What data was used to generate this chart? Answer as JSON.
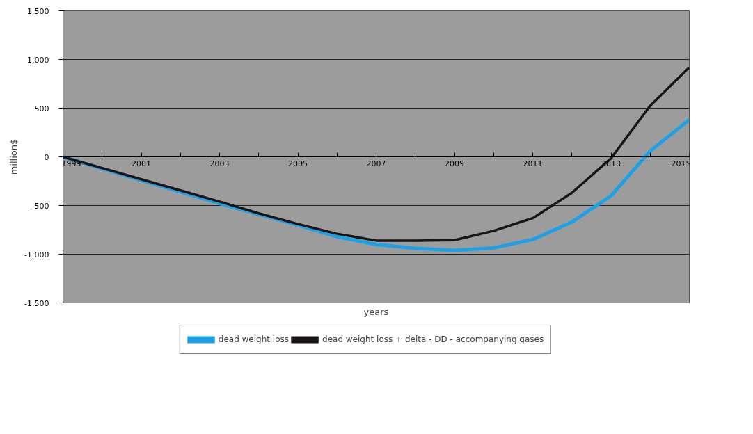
{
  "chart_data": {
    "type": "line",
    "xlabel": "years",
    "ylabel": "million$",
    "x": [
      1999,
      2000,
      2001,
      2002,
      2003,
      2004,
      2005,
      2006,
      2007,
      2008,
      2009,
      2010,
      2011,
      2012,
      2013,
      2014,
      2015
    ],
    "series": [
      {
        "name": "dead weight loss",
        "color": "#1ea0e6",
        "values": [
          0,
          -120,
          -240,
          -360,
          -480,
          -590,
          -700,
          -820,
          -900,
          -940,
          -960,
          -935,
          -850,
          -670,
          -400,
          60,
          380
        ]
      },
      {
        "name": "dead weight loss + delta - DD - accompanying gases",
        "color": "#1a1414",
        "values": [
          0,
          -115,
          -230,
          -345,
          -460,
          -580,
          -690,
          -790,
          -860,
          -860,
          -855,
          -760,
          -630,
          -370,
          -15,
          525,
          920
        ]
      }
    ],
    "xlim": [
      1999,
      2015
    ],
    "xticks": [
      1999,
      {
        "value": 2000,
        "label": null
      },
      2001,
      {
        "value": 2002,
        "label": null
      },
      2003,
      {
        "value": 2004,
        "label": null
      },
      2005,
      {
        "value": 2006,
        "label": null
      },
      2007,
      {
        "value": 2008,
        "label": null
      },
      2009,
      {
        "value": 2010,
        "label": null
      },
      2011,
      {
        "value": 2012,
        "label": null
      },
      2013,
      {
        "value": 2014,
        "label": null
      },
      2015
    ],
    "ylim": [
      -1500,
      1500
    ],
    "yticks": [
      {
        "value": -1500,
        "label": "-1.500"
      },
      {
        "value": -1000,
        "label": "-1.000"
      },
      {
        "value": -500,
        "label": "-500"
      },
      {
        "value": 0,
        "label": "0"
      },
      {
        "value": 500,
        "label": "500"
      },
      {
        "value": 1000,
        "label": "1.000"
      },
      {
        "value": 1500,
        "label": "1.500"
      }
    ],
    "grid": "y",
    "legend": "bottom",
    "marker": "none",
    "line_style": "solid"
  }
}
